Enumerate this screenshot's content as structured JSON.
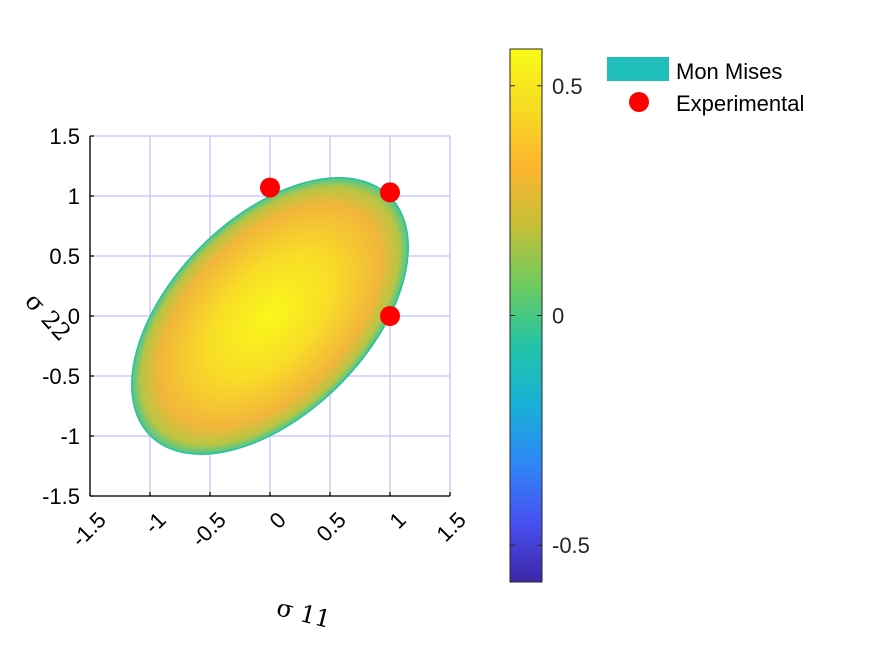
{
  "chart_data": {
    "type": "contour-fill",
    "xlabel": "σ 11",
    "ylabel": "σ 22",
    "xlim": [
      -1.5,
      1.5
    ],
    "ylim": [
      -1.5,
      1.5
    ],
    "xticks": [
      "-1.5",
      "-1",
      "-0.5",
      "0",
      "0.5",
      "1",
      "1.5"
    ],
    "yticks": [
      "-1.5",
      "-1",
      "-0.5",
      "0",
      "0.5",
      "1",
      "1.5"
    ],
    "grid": true,
    "series": [
      {
        "name": "Mon Mises",
        "kind": "filled-ellipse",
        "center": [
          0,
          0
        ],
        "semi_axes": [
          1.41,
          0.815
        ],
        "angle_deg": 45,
        "color": "#1fbeb9"
      },
      {
        "name": "Experimental",
        "kind": "scatter",
        "x": [
          0,
          1,
          1
        ],
        "y": [
          1.07,
          1.03,
          0
        ],
        "color": "#ff0000"
      }
    ],
    "colorbar": {
      "range": [
        -0.58,
        0.58
      ],
      "ticks": [
        {
          "value": 0.5,
          "label": "0.5"
        },
        {
          "value": 0,
          "label": "0"
        },
        {
          "value": -0.5,
          "label": "-0.5"
        }
      ],
      "colormap": [
        "#3e26a8",
        "#4750f0",
        "#2e87f7",
        "#18b1d6",
        "#23c4a6",
        "#6ccb5f",
        "#c4bf37",
        "#feb52f",
        "#f6dc23",
        "#f9fb15"
      ]
    },
    "legend": {
      "placement": "top-right",
      "entries": [
        "Mon Mises",
        "Experimental"
      ]
    },
    "colors": {
      "grid": "#c8c8ff",
      "axis": "#000000"
    }
  }
}
